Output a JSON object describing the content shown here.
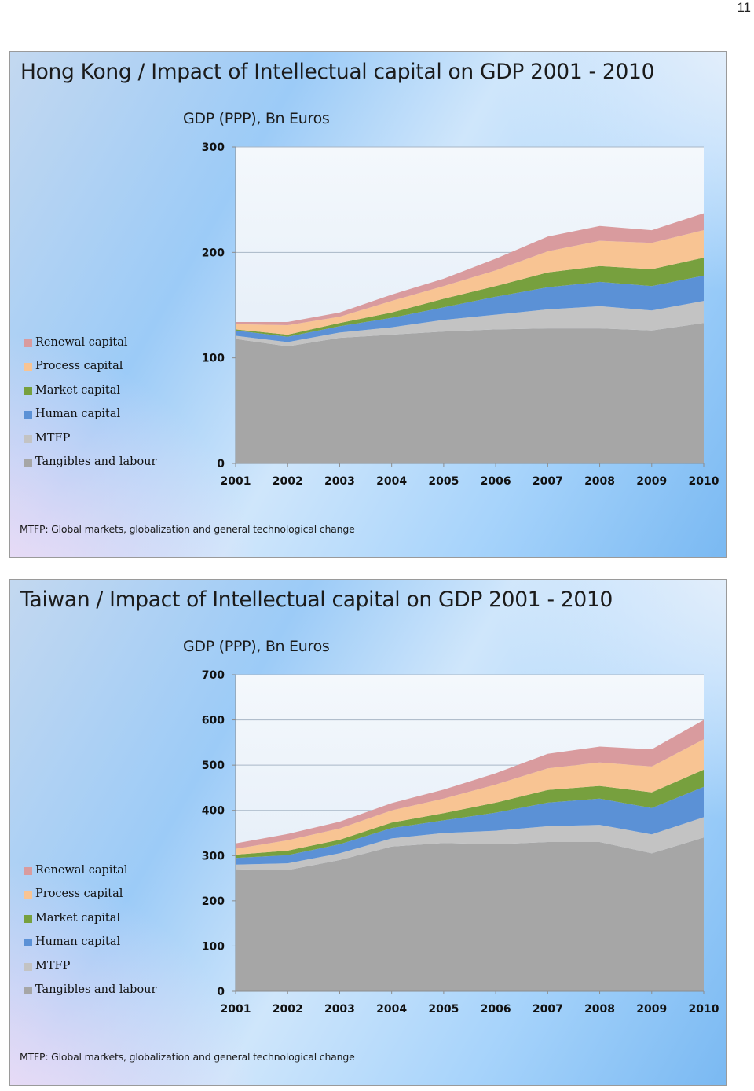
{
  "page_number": "11",
  "colors": {
    "tangibles": "#a6a6a6",
    "mtfp": "#c3c3c3",
    "human": "#5b91d6",
    "market": "#77a03e",
    "process": "#f8c493",
    "renewal": "#d99b9e"
  },
  "chart_data": [
    {
      "type": "area",
      "stacked": true,
      "title": "Hong Kong / Impact of Intellectual capital on GDP 2001 -  2010",
      "subtitle": "GDP (PPP), Bn Euros",
      "x": [
        "2001",
        "2002",
        "2003",
        "2004",
        "2005",
        "2006",
        "2007",
        "2008",
        "2009",
        "2010"
      ],
      "ylim": [
        0,
        300
      ],
      "yticks": [
        "0",
        "100",
        "200",
        "300"
      ],
      "legend": "left",
      "grid": true,
      "series": [
        {
          "name": "Tangibles and labour",
          "color": "#a6a6a6",
          "values": [
            118,
            111,
            119,
            122,
            125,
            127,
            128,
            128,
            126,
            133
          ]
        },
        {
          "name": "MTFP",
          "color": "#c3c3c3",
          "values": [
            3,
            4,
            5,
            7,
            11,
            14,
            18,
            21,
            19,
            21
          ]
        },
        {
          "name": "Human capital",
          "color": "#5b91d6",
          "values": [
            5,
            5,
            6,
            9,
            12,
            17,
            21,
            23,
            23,
            24
          ]
        },
        {
          "name": "Market capital",
          "color": "#77a03e",
          "values": [
            1,
            2,
            3,
            5,
            8,
            10,
            14,
            15,
            16,
            17
          ]
        },
        {
          "name": "Process capital",
          "color": "#f8c493",
          "values": [
            5,
            9,
            6,
            11,
            12,
            15,
            20,
            24,
            25,
            26
          ]
        },
        {
          "name": "Renewal capital",
          "color": "#d99b9e",
          "values": [
            2,
            3,
            4,
            6,
            7,
            11,
            14,
            14,
            12,
            16
          ]
        }
      ],
      "footnote": "MTFP: Global markets, globalization and general technological change"
    },
    {
      "type": "area",
      "stacked": true,
      "title": "Taiwan / Impact of Intellectual capital on GDP 2001 -  2010",
      "subtitle": "GDP (PPP), Bn Euros",
      "x": [
        "2001",
        "2002",
        "2003",
        "2004",
        "2005",
        "2006",
        "2007",
        "2008",
        "2009",
        "2010"
      ],
      "ylim": [
        0,
        700
      ],
      "yticks": [
        "0",
        "100",
        "200",
        "300",
        "400",
        "500",
        "600",
        "700"
      ],
      "legend": "left",
      "grid": true,
      "series": [
        {
          "name": "Tangibles and labour",
          "color": "#a6a6a6",
          "values": [
            270,
            268,
            290,
            320,
            328,
            325,
            330,
            330,
            305,
            340
          ]
        },
        {
          "name": "MTFP",
          "color": "#c3c3c3",
          "values": [
            10,
            15,
            15,
            18,
            22,
            30,
            35,
            38,
            42,
            45
          ]
        },
        {
          "name": "Human capital",
          "color": "#5b91d6",
          "values": [
            15,
            18,
            20,
            23,
            28,
            40,
            52,
            58,
            58,
            67
          ]
        },
        {
          "name": "Market capital",
          "color": "#77a03e",
          "values": [
            7,
            10,
            10,
            12,
            16,
            22,
            28,
            28,
            35,
            38
          ]
        },
        {
          "name": "Process capital",
          "color": "#f8c493",
          "values": [
            13,
            23,
            25,
            27,
            32,
            40,
            48,
            52,
            57,
            67
          ]
        },
        {
          "name": "Renewal capital",
          "color": "#d99b9e",
          "values": [
            12,
            14,
            15,
            16,
            20,
            25,
            32,
            35,
            38,
            43
          ]
        }
      ],
      "footnote": "MTFP: Global markets, globalization and general technological change"
    }
  ]
}
